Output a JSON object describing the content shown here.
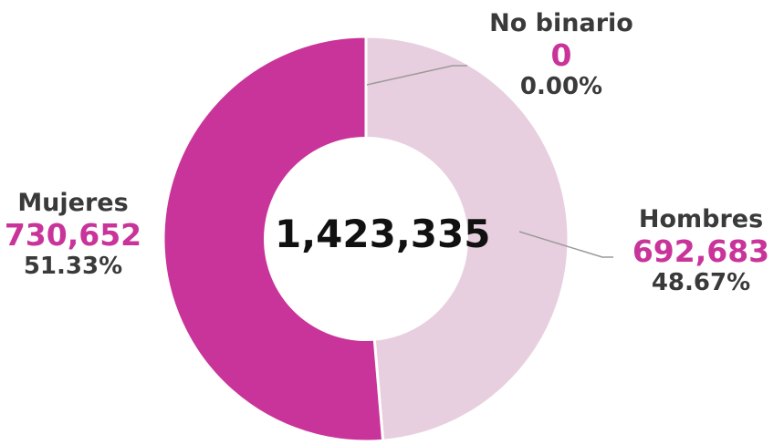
{
  "chart_data": {
    "type": "pie",
    "variant": "donut",
    "total_label": "1,423,335",
    "slices": [
      {
        "name": "Hombres",
        "value": 692683,
        "value_label": "692,683",
        "percent_label": "48.67%",
        "color": "#e8cfdf"
      },
      {
        "name": "Mujeres",
        "value": 730652,
        "value_label": "730,652",
        "percent_label": "51.33%",
        "color": "#c9349a"
      },
      {
        "name": "No binario",
        "value": 0,
        "value_label": "0",
        "percent_label": "0.00%",
        "color": "#c9349a"
      }
    ],
    "value_color": "#c9349a",
    "leader_color": "#9a9a9a"
  }
}
